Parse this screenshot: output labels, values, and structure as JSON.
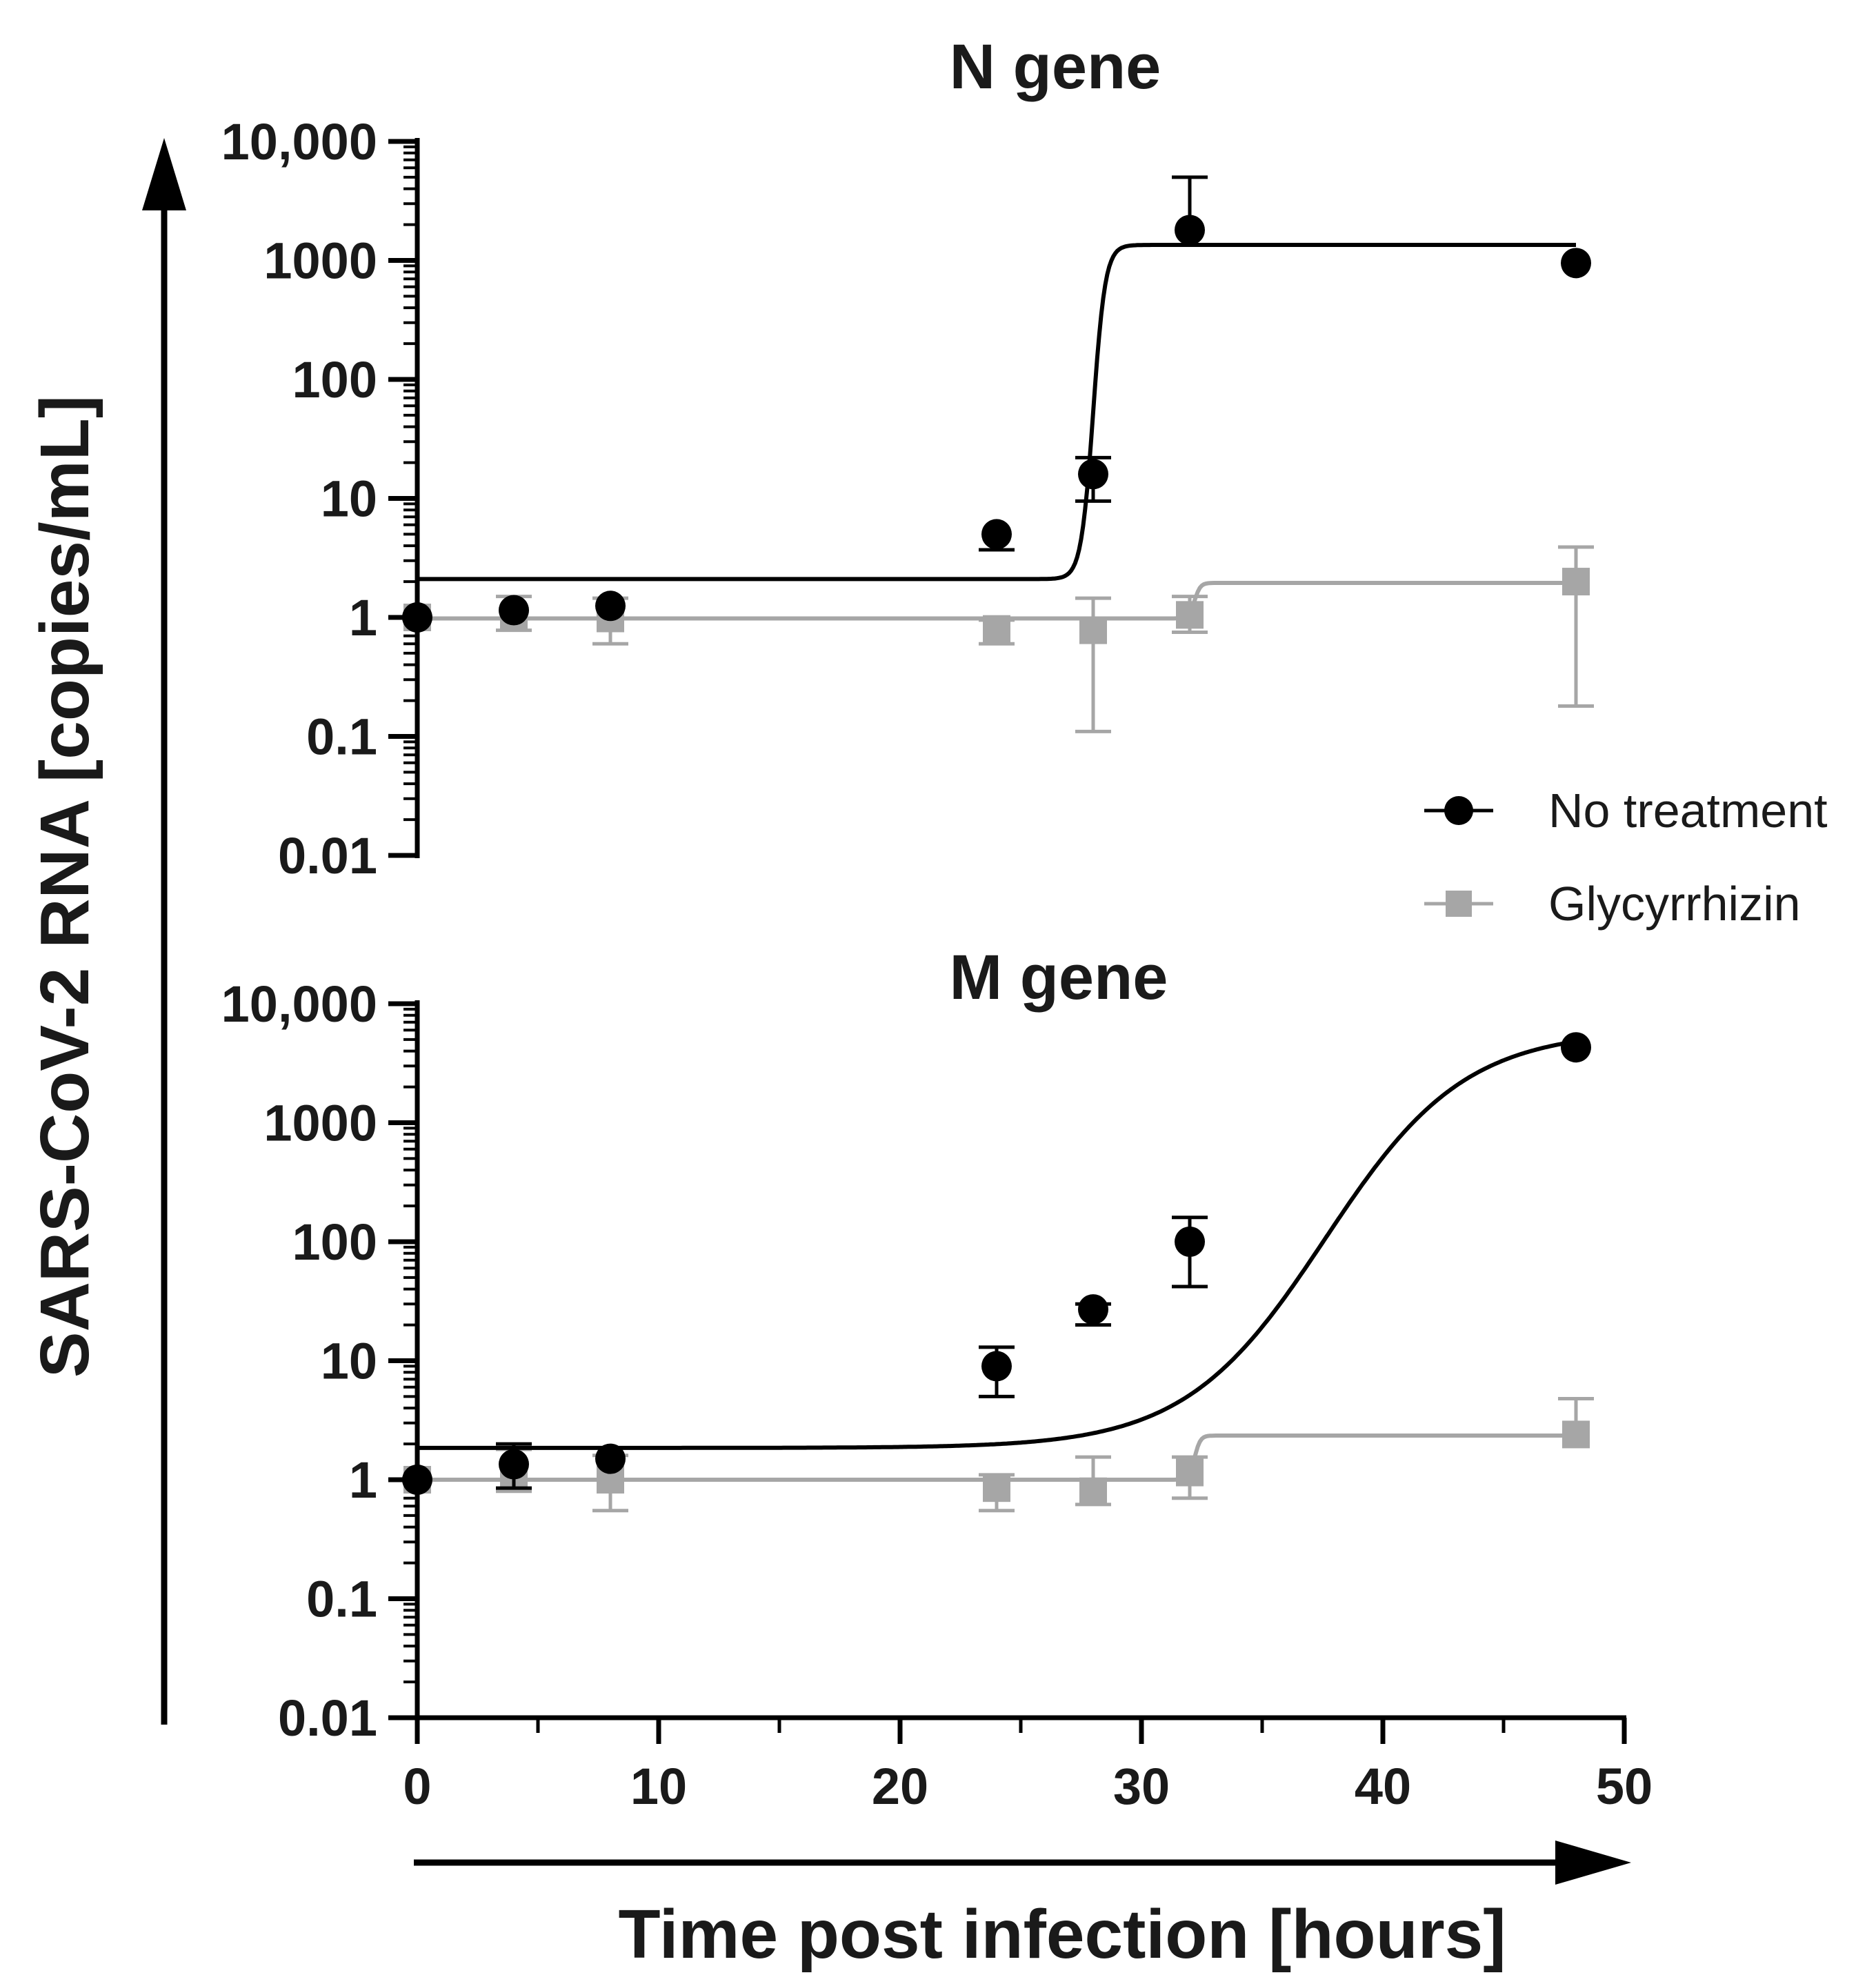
{
  "chart_data": [
    {
      "type": "scatter",
      "panel": "top",
      "title": "N gene",
      "xlim": [
        0,
        50
      ],
      "ylim": [
        0.01,
        10000
      ],
      "yscale": "log",
      "yticks": [
        "10,000",
        "1000",
        "100",
        "10",
        "1",
        "0.1",
        "0.01"
      ],
      "ytick_values": [
        10000,
        1000,
        100,
        10,
        1,
        0.1,
        0.01
      ],
      "series": [
        {
          "name": "No treatment",
          "marker": "circle",
          "color": "#000000",
          "points": [
            {
              "x": 0,
              "y": 1.0
            },
            {
              "x": 4,
              "y": 1.15
            },
            {
              "x": 8,
              "y": 1.25
            },
            {
              "x": 24,
              "y": 5.0,
              "err_low": 3.7,
              "err_high": 5.0
            },
            {
              "x": 28,
              "y": 16,
              "err_low": 9.5,
              "err_high": 22
            },
            {
              "x": 32,
              "y": 1800,
              "err_low": 1800,
              "err_high": 5000
            },
            {
              "x": 48,
              "y": 950
            }
          ],
          "fit": {
            "model": "sigmoid",
            "bottom": 2.1,
            "top": 1350,
            "x50": 28,
            "width": 0.25
          }
        },
        {
          "name": "Glycyrrhizin",
          "marker": "square",
          "color": "#a6a6a6",
          "points": [
            {
              "x": 0,
              "y": 1.0
            },
            {
              "x": 4,
              "y": 1.0,
              "err_low": 0.78,
              "err_high": 1.5
            },
            {
              "x": 8,
              "y": 0.98,
              "err_low": 0.6,
              "err_high": 1.45
            },
            {
              "x": 24,
              "y": 0.8,
              "err_low": 0.6,
              "err_high": 0.95
            },
            {
              "x": 28,
              "y": 0.78,
              "err_low": 0.11,
              "err_high": 1.45
            },
            {
              "x": 32,
              "y": 1.05,
              "err_low": 0.75,
              "err_high": 1.5
            },
            {
              "x": 48,
              "y": 2.0,
              "err_low": 0.18,
              "err_high": 3.9
            }
          ],
          "fit": {
            "model": "sigmoid",
            "bottom": 0.98,
            "top": 1.95,
            "x50": 32.2,
            "width": 0.12
          }
        }
      ]
    },
    {
      "type": "scatter",
      "panel": "bottom",
      "title": "M gene",
      "xlabel": "Time post infection [hours]",
      "xlim": [
        0,
        50
      ],
      "xticks": [
        0,
        10,
        20,
        30,
        40,
        50
      ],
      "xtick_labels": [
        "0",
        "10",
        "20",
        "30",
        "40",
        "50"
      ],
      "ylim": [
        0.01,
        10000
      ],
      "yscale": "log",
      "yticks": [
        "10,000",
        "1000",
        "100",
        "10",
        "1",
        "0.1",
        "0.01"
      ],
      "ytick_values": [
        10000,
        1000,
        100,
        10,
        1,
        0.1,
        0.01
      ],
      "series": [
        {
          "name": "No treatment",
          "marker": "circle",
          "color": "#000000",
          "points": [
            {
              "x": 0,
              "y": 1.0
            },
            {
              "x": 4,
              "y": 1.35,
              "err_low": 0.85,
              "err_high": 2.0
            },
            {
              "x": 8,
              "y": 1.5
            },
            {
              "x": 24,
              "y": 9,
              "err_low": 5.0,
              "err_high": 13
            },
            {
              "x": 28,
              "y": 27,
              "err_low": 20,
              "err_high": 30
            },
            {
              "x": 32,
              "y": 100,
              "err_low": 42,
              "err_high": 160
            },
            {
              "x": 48,
              "y": 4300
            }
          ],
          "fit": {
            "model": "sigmoid",
            "bottom": 1.85,
            "top": 6000,
            "x50": 37.6,
            "width": 2.9
          }
        },
        {
          "name": "Glycyrrhizin",
          "marker": "square",
          "color": "#a6a6a6",
          "points": [
            {
              "x": 0,
              "y": 1.0
            },
            {
              "x": 4,
              "y": 1.1,
              "err_low": 0.8,
              "err_high": 1.8
            },
            {
              "x": 8,
              "y": 1.0,
              "err_low": 0.55,
              "err_high": 1.6
            },
            {
              "x": 24,
              "y": 0.85,
              "err_low": 0.55,
              "err_high": 1.1
            },
            {
              "x": 28,
              "y": 0.8,
              "err_low": 0.62,
              "err_high": 1.55
            },
            {
              "x": 32,
              "y": 1.15,
              "err_low": 0.7,
              "err_high": 1.55
            },
            {
              "x": 48,
              "y": 2.4,
              "err_low": 2.4,
              "err_high": 4.8
            }
          ],
          "fit": {
            "model": "sigmoid",
            "bottom": 1.0,
            "top": 2.35,
            "x50": 32.2,
            "width": 0.12
          }
        }
      ]
    }
  ],
  "ylabel": "SARS-CoV-2 RNA [copies/mL]",
  "legend": [
    {
      "label": "No treatment",
      "marker": "circle",
      "color": "#000000"
    },
    {
      "label": "Glycyrrhizin",
      "marker": "square",
      "color": "#a6a6a6"
    }
  ]
}
